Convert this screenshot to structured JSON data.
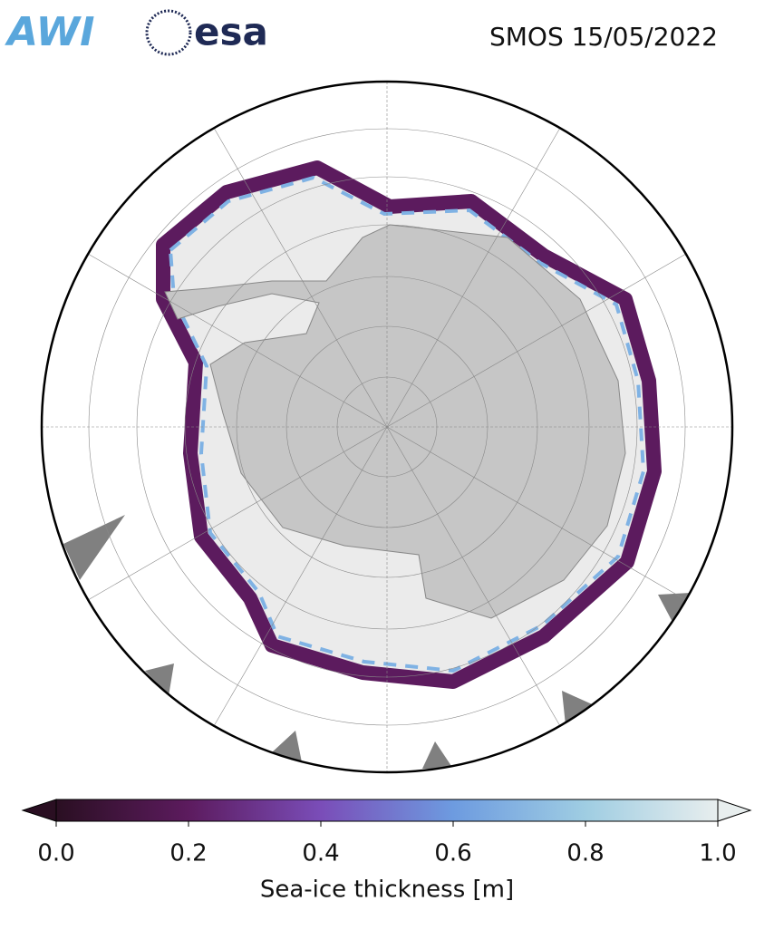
{
  "logos": [
    "AWI",
    "esa"
  ],
  "title": "SMOS 15/05/2022",
  "colorbar": {
    "label": "Sea-ice thickness [m]",
    "clim": [
      0,
      1
    ],
    "ticks": [
      {
        "value": 0,
        "label": "0.0"
      },
      0.2,
      0.4,
      0.6,
      0.8,
      {
        "value": 1,
        "label": "1.0"
      }
    ],
    "colormap": [
      "#2a0f22",
      "#5c1b5e",
      "#7a4db8",
      "#6d9be0",
      "#9fcde2",
      "#e8eeee"
    ]
  }
}
